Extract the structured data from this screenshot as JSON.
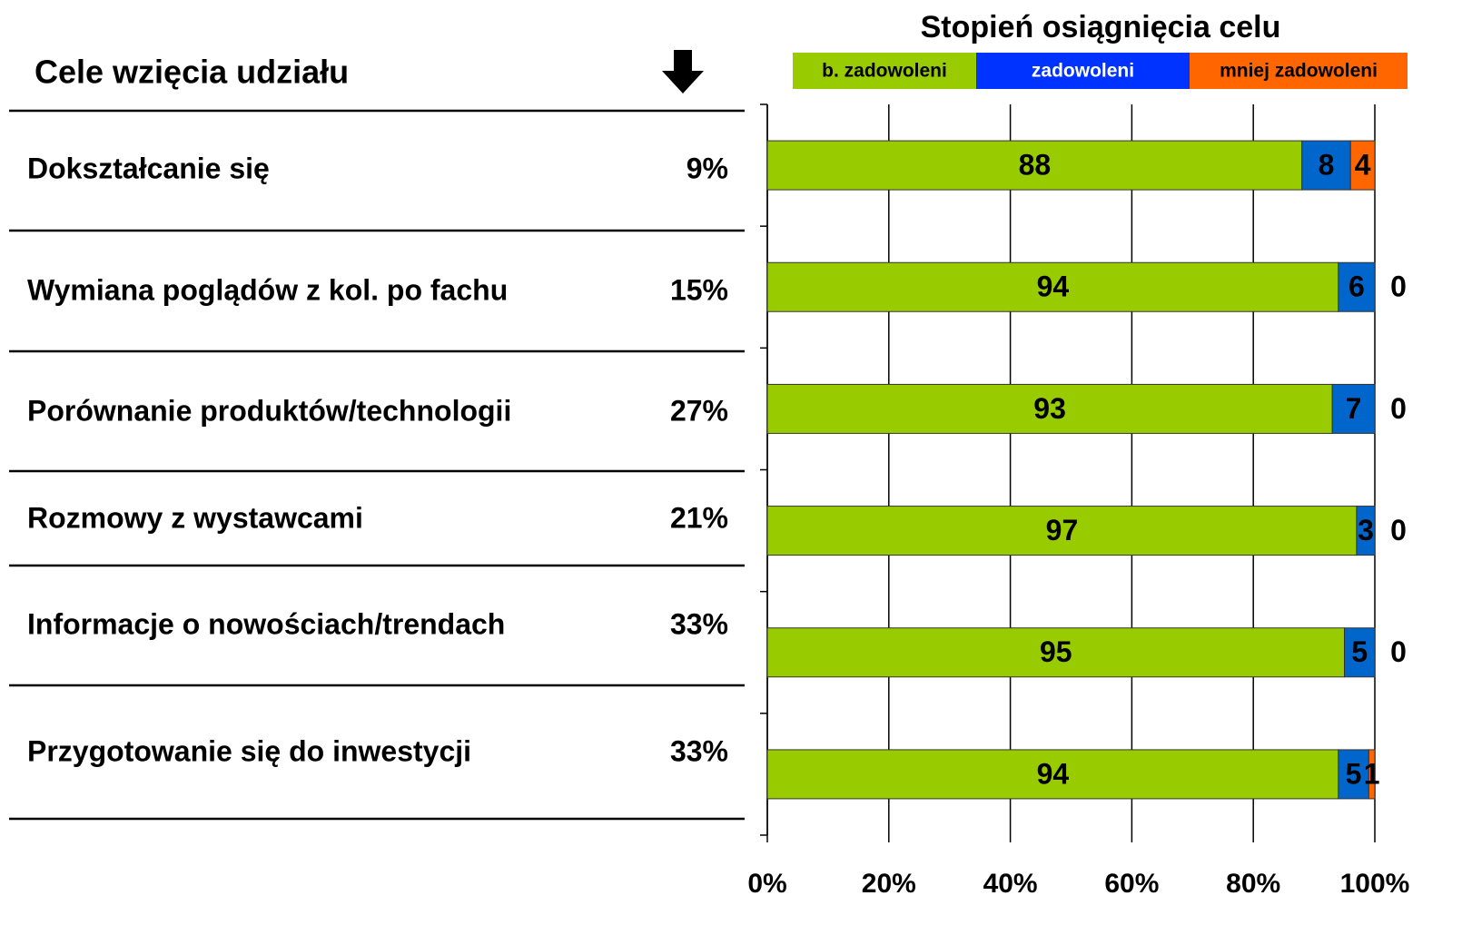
{
  "table": {
    "title": "Cele wzięcia udziału",
    "rows": [
      [
        "Dokształcanie się",
        "9%"
      ],
      [
        "Wymiana poglądów z kol. po fachu",
        "15%"
      ],
      [
        "Porównanie produktów/technologii",
        "27%"
      ],
      [
        "Rozmowy z wystawcami",
        "21%"
      ],
      [
        "Informacje o nowościach/trendach",
        "33%"
      ],
      [
        "Przygotowanie się do inwestycji",
        "33%"
      ]
    ]
  },
  "chart_data": {
    "type": "bar",
    "orientation": "horizontal",
    "stacked": true,
    "title": "Stopień osiągnięcia celu",
    "categories": [
      null,
      null,
      null,
      null,
      null,
      null
    ],
    "series": [
      {
        "name": "b. zadowoleni",
        "color": "#99cc00",
        "values": [
          88,
          94,
          93,
          97,
          95,
          94
        ]
      },
      {
        "name": "zadowoleni",
        "color": "#0066cc",
        "values": [
          8,
          6,
          7,
          3,
          5,
          5
        ]
      },
      {
        "name": "mniej zadowoleni",
        "color": "#ff6600",
        "values": [
          4,
          0,
          0,
          0,
          0,
          1
        ]
      }
    ],
    "xlim": [
      0,
      100
    ],
    "xticks": [
      {
        "value": 0,
        "label": "0%"
      },
      {
        "value": 20,
        "label": "20%"
      },
      {
        "value": 40,
        "label": "40%"
      },
      {
        "value": 60,
        "label": "60%"
      },
      {
        "value": 80,
        "label": "80%"
      },
      {
        "value": 100,
        "label": "100%"
      }
    ],
    "grid": true,
    "legend": "top"
  }
}
